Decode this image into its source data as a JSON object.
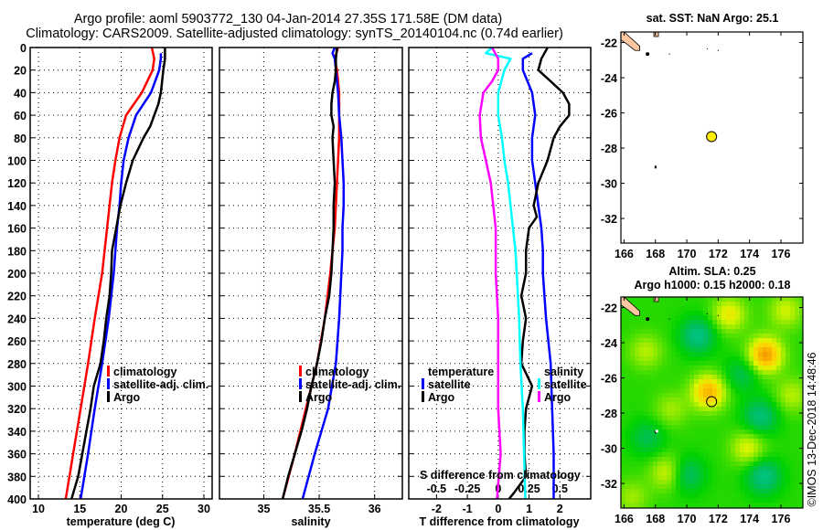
{
  "title": {
    "line1": "Argo profile: aoml 5903772_130 04-Jan-2014 27.35S 171.58E (DM data)",
    "line2": "Climatology: CARS2009. Satellite-adjusted climatology: synTS_20140104.nc (0.74d earlier)"
  },
  "stamp": "©IMOS 13-Dec-2018 14:48:46",
  "colors": {
    "climatology": "#ff0000",
    "satellite": "#0000ff",
    "argo": "#000000",
    "s_satellite": "#00ffff",
    "s_argo": "#ff00ff",
    "land": "#ffc8a0",
    "float_marker": "#ffee00"
  },
  "chart_data": [
    {
      "type": "line",
      "name": "temperature-profile",
      "xlabel": "temperature (deg C)",
      "ylabel": "",
      "xlim": [
        9,
        31
      ],
      "ylim": [
        400,
        0
      ],
      "grid": true,
      "xticks": [
        10,
        15,
        20,
        25,
        30
      ],
      "yticks": [
        0,
        20,
        40,
        60,
        80,
        100,
        120,
        140,
        160,
        180,
        200,
        220,
        240,
        260,
        280,
        300,
        320,
        340,
        360,
        380,
        400
      ],
      "legend": {
        "position": "right-middle",
        "entries": [
          "climatology",
          "satellite-adj. clim.",
          "Argo"
        ]
      },
      "series": [
        {
          "name": "climatology",
          "color": "#ff0000",
          "depth": [
            0,
            10,
            20,
            40,
            60,
            80,
            100,
            120,
            140,
            160,
            180,
            200,
            240,
            280,
            320,
            360,
            400
          ],
          "values": [
            23.7,
            24.0,
            23.8,
            22.5,
            20.6,
            19.8,
            19.3,
            18.9,
            18.6,
            18.3,
            18.0,
            17.7,
            16.8,
            16.0,
            15.1,
            14.2,
            13.3
          ]
        },
        {
          "name": "satellite-adj. clim.",
          "color": "#0000ff",
          "depth": [
            5,
            10,
            20,
            40,
            60,
            80,
            100,
            120,
            140,
            160,
            180,
            200,
            240,
            280,
            320,
            360,
            400
          ],
          "values": [
            24.8,
            24.8,
            24.6,
            23.6,
            21.8,
            20.9,
            20.3,
            20.0,
            19.8,
            19.5,
            19.3,
            19.1,
            18.5,
            17.7,
            16.8,
            16.0,
            15.1
          ]
        },
        {
          "name": "Argo",
          "color": "#000000",
          "depth": [
            0,
            10,
            20,
            40,
            50,
            60,
            70,
            80,
            100,
            120,
            140,
            160,
            180,
            200,
            220,
            240,
            260,
            280,
            300,
            320,
            340,
            360,
            380,
            400
          ],
          "values": [
            25.3,
            25.3,
            25.1,
            24.8,
            24.5,
            24.0,
            23.5,
            22.7,
            21.4,
            20.6,
            19.9,
            19.4,
            18.9,
            18.8,
            18.6,
            18.2,
            17.9,
            17.5,
            16.7,
            16.3,
            15.8,
            15.3,
            14.8,
            14.0
          ]
        }
      ]
    },
    {
      "type": "line",
      "name": "salinity-profile",
      "xlabel": "salinity",
      "xlim": [
        34.6,
        36.25
      ],
      "ylim": [
        400,
        0
      ],
      "grid": true,
      "xticks": [
        35,
        35.5,
        36
      ],
      "legend": {
        "position": "right-middle",
        "entries": [
          "climatology",
          "satellite-adj. clim.",
          "Argo"
        ]
      },
      "series": [
        {
          "name": "climatology",
          "color": "#ff0000",
          "depth": [
            0,
            10,
            20,
            40,
            60,
            80,
            100,
            120,
            140,
            160,
            180,
            200,
            240,
            280,
            320,
            360,
            400
          ],
          "values": [
            35.67,
            35.64,
            35.66,
            35.68,
            35.68,
            35.68,
            35.67,
            35.66,
            35.65,
            35.64,
            35.62,
            35.6,
            35.55,
            35.48,
            35.38,
            35.28,
            35.17
          ]
        },
        {
          "name": "satellite-adj. clim.",
          "color": "#0000ff",
          "depth": [
            0,
            5,
            10,
            20,
            40,
            60,
            80,
            100,
            120,
            140,
            160,
            180,
            200,
            240,
            280,
            320,
            360,
            400
          ],
          "values": [
            35.64,
            35.62,
            35.64,
            35.65,
            35.67,
            35.68,
            35.7,
            35.71,
            35.72,
            35.72,
            35.71,
            35.71,
            35.7,
            35.68,
            35.65,
            35.58,
            35.46,
            35.35
          ]
        },
        {
          "name": "Argo",
          "color": "#000000",
          "depth": [
            0,
            10,
            20,
            30,
            40,
            50,
            60,
            70,
            80,
            100,
            120,
            140,
            160,
            180,
            200,
            220,
            240,
            260,
            280,
            300,
            320,
            340,
            360,
            380,
            400
          ],
          "values": [
            35.66,
            35.65,
            35.65,
            35.64,
            35.62,
            35.61,
            35.61,
            35.63,
            35.62,
            35.63,
            35.64,
            35.63,
            35.63,
            35.62,
            35.61,
            35.59,
            35.55,
            35.52,
            35.48,
            35.43,
            35.39,
            35.34,
            35.28,
            35.22,
            35.17
          ]
        }
      ]
    },
    {
      "type": "line",
      "name": "difference-profile",
      "xlabel": "T difference from climatology",
      "xlabel2": "S difference from climatology",
      "xlim": [
        -2.9,
        3.0
      ],
      "ylim": [
        400,
        0
      ],
      "grid": true,
      "xticks": [
        -2,
        -1,
        0,
        1,
        2
      ],
      "xticks_s": {
        "labels": [
          "-0.5",
          "-0.25",
          "0",
          "0.25",
          "0.5"
        ],
        "values": [
          -0.5,
          -0.25,
          0,
          0.25,
          0.5
        ]
      },
      "legend": {
        "temperature": {
          "title": "temperature",
          "entries": [
            "satellite",
            "Argo"
          ]
        },
        "salinity": {
          "title": "salinity",
          "entries": [
            "satellite",
            "Argo"
          ]
        }
      },
      "series": [
        {
          "name": "T satellite",
          "color": "#0000ff",
          "depth": [
            5,
            10,
            20,
            40,
            60,
            80,
            100,
            120,
            140,
            160,
            180,
            200,
            240,
            280,
            320,
            360,
            400
          ],
          "values": [
            1.1,
            0.8,
            0.8,
            1.1,
            1.2,
            1.1,
            1.1,
            1.2,
            1.3,
            1.4,
            1.45,
            1.45,
            1.55,
            1.7,
            1.75,
            1.8,
            1.8
          ]
        },
        {
          "name": "T Argo",
          "color": "#000000",
          "depth": [
            0,
            5,
            10,
            20,
            30,
            40,
            50,
            60,
            70,
            80,
            100,
            120,
            140,
            150,
            160,
            180,
            200,
            220,
            240,
            260,
            280,
            300,
            320,
            340,
            360,
            380,
            395,
            400
          ],
          "values": [
            1.6,
            1.5,
            1.4,
            1.3,
            1.7,
            2.1,
            2.3,
            2.3,
            2.0,
            1.8,
            1.6,
            1.3,
            1.15,
            1.25,
            1.0,
            0.9,
            0.9,
            0.75,
            0.9,
            0.8,
            0.75,
            1.1,
            0.9,
            0.85,
            0.85,
            0.9,
            0.5,
            0.35
          ]
        },
        {
          "name": "S satellite",
          "color": "#00ffff",
          "depth": [
            0,
            5,
            10,
            20,
            40,
            60,
            80,
            100,
            120,
            140,
            160,
            180,
            200,
            240,
            280,
            320,
            360,
            400
          ],
          "values": [
            -0.05,
            -0.1,
            0.1,
            0.05,
            0.0,
            0.0,
            0.03,
            0.05,
            0.08,
            0.1,
            0.12,
            0.14,
            0.15,
            0.17,
            0.18,
            0.2,
            0.21,
            0.22
          ]
        },
        {
          "name": "S Argo",
          "color": "#ff00ff",
          "depth": [
            0,
            10,
            20,
            30,
            40,
            60,
            80,
            100,
            120,
            140,
            160,
            180,
            200,
            240,
            280,
            320,
            360,
            400
          ],
          "values": [
            -0.05,
            0.0,
            0.0,
            -0.05,
            -0.12,
            -0.15,
            -0.14,
            -0.1,
            -0.06,
            -0.04,
            -0.02,
            -0.02,
            -0.02,
            0.0,
            0.0,
            0.0,
            0.02,
            -0.01
          ]
        }
      ]
    },
    {
      "type": "map",
      "name": "sst-map",
      "title": "sat. SST: NaN Argo: 25.1",
      "xlim": [
        165.8,
        177.4
      ],
      "ylim": [
        -21.4,
        -33.4
      ],
      "xticks": [
        166,
        168,
        170,
        172,
        174,
        176
      ],
      "yticks": [
        -22,
        -24,
        -26,
        -28,
        -30,
        -32
      ],
      "float_position": {
        "lon": 171.58,
        "lat": -27.35
      }
    },
    {
      "type": "heatmap",
      "name": "sla-map",
      "title": "Altim. SLA: 0.25",
      "subtitle": "Argo h1000: 0.15 h2000: 0.18",
      "xlim": [
        165.8,
        177.4
      ],
      "ylim": [
        -21.4,
        -33.4
      ],
      "xticks": [
        166,
        168,
        170,
        172,
        174,
        176
      ],
      "yticks": [
        -22,
        -24,
        -26,
        -28,
        -30,
        -32
      ],
      "float_position": {
        "lon": 171.58,
        "lat": -27.35
      },
      "blobs": [
        {
          "lon": 170.7,
          "lat": -23.6,
          "value": -1
        },
        {
          "lon": 175.0,
          "lat": -24.7,
          "value": 1.6
        },
        {
          "lon": 171.4,
          "lat": -26.8,
          "value": 1.4
        },
        {
          "lon": 173.5,
          "lat": -25.8,
          "value": -0.6
        },
        {
          "lon": 174.7,
          "lat": -28.2,
          "value": -0.9
        },
        {
          "lon": 174.9,
          "lat": -31.6,
          "value": -1.0
        },
        {
          "lon": 167.5,
          "lat": -29.4,
          "value": -0.6
        },
        {
          "lon": 170.0,
          "lat": -31.5,
          "value": -0.8
        },
        {
          "lon": 168.8,
          "lat": -31.4,
          "value": 0.8
        },
        {
          "lon": 173.9,
          "lat": -30.0,
          "value": 0.8
        },
        {
          "lon": 167.4,
          "lat": -24.5,
          "value": 0.6
        },
        {
          "lon": 172.7,
          "lat": -22.4,
          "value": 0.9
        },
        {
          "lon": 176.3,
          "lat": -22.2,
          "value": 0.7
        },
        {
          "lon": 169.0,
          "lat": -27.8,
          "value": 0.5
        },
        {
          "lon": 176.7,
          "lat": -27.0,
          "value": 0.6
        },
        {
          "lon": 166.5,
          "lat": -32.8,
          "value": 0.5
        }
      ]
    }
  ]
}
